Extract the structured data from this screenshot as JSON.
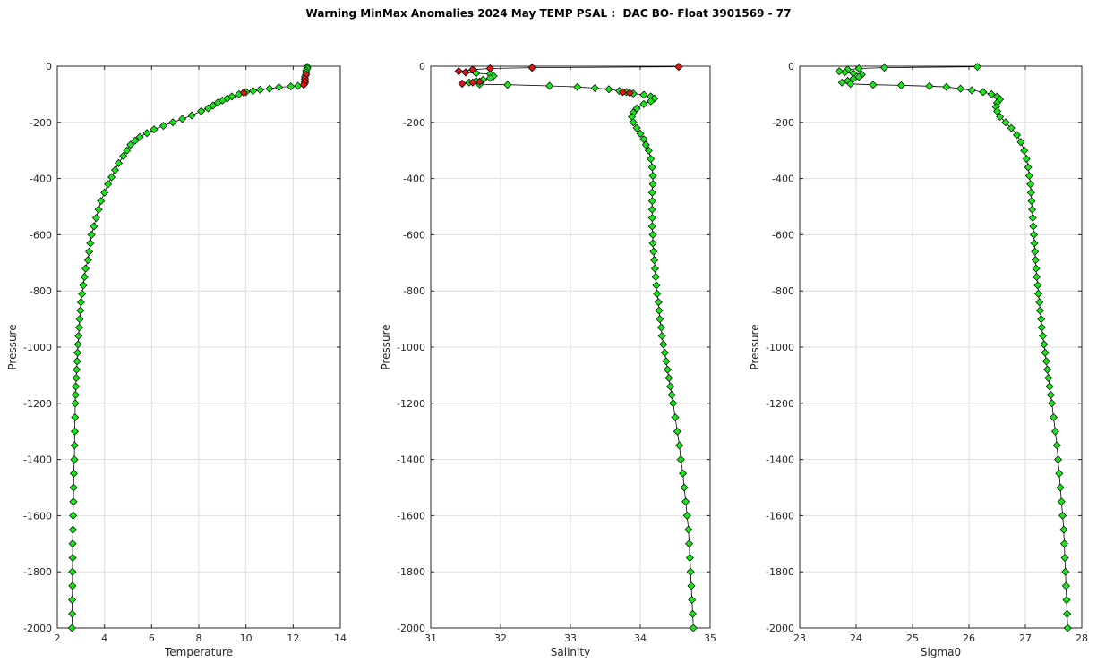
{
  "figure": {
    "title": "Warning MinMax Anomalies 2024 May TEMP PSAL :  DAC BO- Float 3901569 - 77"
  },
  "colors": {
    "good": "#19e619",
    "warning": "#e21515",
    "line": "#000000",
    "grid": "#dedede"
  },
  "chart_data": [
    {
      "type": "scatter",
      "xlabel": "Temperature",
      "ylabel": "Pressure",
      "xlim": [
        2,
        14
      ],
      "ylim": [
        -2000,
        0
      ],
      "xticks": [
        "2",
        "4",
        "6",
        "8",
        "10",
        "12",
        "14"
      ],
      "yticks": [
        "0",
        "-200",
        "-400",
        "-600",
        "-800",
        "-1000",
        "-1200",
        "-1400",
        "-1600",
        "-1800",
        "-2000"
      ],
      "grid": true,
      "series": [
        {
          "points": [
            [
              12.6,
              -2
            ],
            [
              12.6,
              -8
            ],
            [
              12.55,
              -15
            ],
            [
              12.55,
              -22
            ],
            [
              12.55,
              -30
            ],
            [
              12.5,
              -38
            ],
            [
              12.5,
              -45
            ],
            [
              12.5,
              -52
            ],
            [
              12.5,
              -60
            ],
            [
              12.45,
              -66
            ],
            [
              12.2,
              -70
            ],
            [
              11.9,
              -72
            ],
            [
              11.4,
              -75
            ],
            [
              11.0,
              -80
            ],
            [
              10.6,
              -84
            ],
            [
              10.3,
              -88
            ],
            [
              10.0,
              -92
            ],
            [
              9.7,
              -100
            ],
            [
              9.4,
              -108
            ],
            [
              9.2,
              -115
            ],
            [
              9.0,
              -122
            ],
            [
              8.8,
              -130
            ],
            [
              8.6,
              -140
            ],
            [
              8.4,
              -150
            ],
            [
              8.1,
              -160
            ],
            [
              7.7,
              -175
            ],
            [
              7.3,
              -188
            ],
            [
              6.9,
              -200
            ],
            [
              6.5,
              -212
            ],
            [
              6.1,
              -225
            ],
            [
              5.8,
              -238
            ],
            [
              5.5,
              -252
            ],
            [
              5.3,
              -265
            ],
            [
              5.1,
              -280
            ],
            [
              4.95,
              -300
            ],
            [
              4.8,
              -320
            ],
            [
              4.6,
              -345
            ],
            [
              4.45,
              -370
            ],
            [
              4.3,
              -395
            ],
            [
              4.15,
              -420
            ],
            [
              4.0,
              -450
            ],
            [
              3.85,
              -480
            ],
            [
              3.75,
              -510
            ],
            [
              3.65,
              -540
            ],
            [
              3.55,
              -570
            ],
            [
              3.45,
              -600
            ],
            [
              3.4,
              -630
            ],
            [
              3.35,
              -660
            ],
            [
              3.3,
              -690
            ],
            [
              3.2,
              -720
            ],
            [
              3.15,
              -750
            ],
            [
              3.1,
              -780
            ],
            [
              3.05,
              -810
            ],
            [
              3.0,
              -840
            ],
            [
              2.98,
              -870
            ],
            [
              2.95,
              -900
            ],
            [
              2.93,
              -930
            ],
            [
              2.9,
              -960
            ],
            [
              2.88,
              -990
            ],
            [
              2.86,
              -1020
            ],
            [
              2.84,
              -1050
            ],
            [
              2.82,
              -1080
            ],
            [
              2.8,
              -1110
            ],
            [
              2.78,
              -1140
            ],
            [
              2.77,
              -1170
            ],
            [
              2.76,
              -1200
            ],
            [
              2.75,
              -1250
            ],
            [
              2.74,
              -1300
            ],
            [
              2.73,
              -1350
            ],
            [
              2.72,
              -1400
            ],
            [
              2.7,
              -1450
            ],
            [
              2.69,
              -1500
            ],
            [
              2.68,
              -1550
            ],
            [
              2.67,
              -1600
            ],
            [
              2.66,
              -1650
            ],
            [
              2.65,
              -1700
            ],
            [
              2.65,
              -1750
            ],
            [
              2.64,
              -1800
            ],
            [
              2.64,
              -1850
            ],
            [
              2.63,
              -1900
            ],
            [
              2.63,
              -1950
            ],
            [
              2.62,
              -2000
            ]
          ],
          "warning_points": [
            [
              12.55,
              -30
            ],
            [
              12.5,
              -45
            ],
            [
              12.5,
              -55
            ],
            [
              12.45,
              -66
            ],
            [
              9.9,
              -94
            ]
          ]
        }
      ]
    },
    {
      "type": "scatter",
      "xlabel": "Salinity",
      "ylabel": "Pressure",
      "xlim": [
        31,
        35
      ],
      "ylim": [
        -2000,
        0
      ],
      "xticks": [
        "31",
        "32",
        "33",
        "34",
        "35"
      ],
      "yticks": [
        "0",
        "-200",
        "-400",
        "-600",
        "-800",
        "-1000",
        "-1200",
        "-1400",
        "-1600",
        "-1800",
        "-2000"
      ],
      "grid": true,
      "series": [
        {
          "points": [
            [
              34.55,
              -2
            ],
            [
              32.45,
              -5
            ],
            [
              31.85,
              -8
            ],
            [
              31.6,
              -12
            ],
            [
              31.4,
              -18
            ],
            [
              31.5,
              -22
            ],
            [
              31.65,
              -25
            ],
            [
              31.85,
              -28
            ],
            [
              31.9,
              -35
            ],
            [
              31.85,
              -42
            ],
            [
              31.75,
              -48
            ],
            [
              31.65,
              -53
            ],
            [
              31.55,
              -58
            ],
            [
              31.45,
              -62
            ],
            [
              31.7,
              -65
            ],
            [
              32.1,
              -66
            ],
            [
              32.7,
              -70
            ],
            [
              33.1,
              -74
            ],
            [
              33.35,
              -78
            ],
            [
              33.55,
              -82
            ],
            [
              33.7,
              -88
            ],
            [
              33.8,
              -92
            ],
            [
              33.9,
              -97
            ],
            [
              34.05,
              -102
            ],
            [
              34.15,
              -108
            ],
            [
              34.2,
              -115
            ],
            [
              34.15,
              -125
            ],
            [
              34.05,
              -135
            ],
            [
              33.95,
              -150
            ],
            [
              33.9,
              -165
            ],
            [
              33.88,
              -180
            ],
            [
              33.9,
              -200
            ],
            [
              33.95,
              -220
            ],
            [
              34.0,
              -240
            ],
            [
              34.05,
              -260
            ],
            [
              34.08,
              -280
            ],
            [
              34.12,
              -300
            ],
            [
              34.15,
              -330
            ],
            [
              34.17,
              -360
            ],
            [
              34.18,
              -390
            ],
            [
              34.18,
              -420
            ],
            [
              34.17,
              -450
            ],
            [
              34.17,
              -480
            ],
            [
              34.17,
              -510
            ],
            [
              34.17,
              -540
            ],
            [
              34.17,
              -570
            ],
            [
              34.18,
              -600
            ],
            [
              34.18,
              -630
            ],
            [
              34.19,
              -660
            ],
            [
              34.2,
              -690
            ],
            [
              34.21,
              -720
            ],
            [
              34.22,
              -750
            ],
            [
              34.23,
              -780
            ],
            [
              34.24,
              -810
            ],
            [
              34.26,
              -840
            ],
            [
              34.27,
              -870
            ],
            [
              34.28,
              -900
            ],
            [
              34.3,
              -930
            ],
            [
              34.31,
              -960
            ],
            [
              34.33,
              -990
            ],
            [
              34.35,
              -1020
            ],
            [
              34.37,
              -1050
            ],
            [
              34.39,
              -1080
            ],
            [
              34.41,
              -1110
            ],
            [
              34.43,
              -1140
            ],
            [
              34.45,
              -1170
            ],
            [
              34.47,
              -1200
            ],
            [
              34.5,
              -1250
            ],
            [
              34.53,
              -1300
            ],
            [
              34.56,
              -1350
            ],
            [
              34.58,
              -1400
            ],
            [
              34.61,
              -1450
            ],
            [
              34.63,
              -1500
            ],
            [
              34.65,
              -1550
            ],
            [
              34.67,
              -1600
            ],
            [
              34.69,
              -1650
            ],
            [
              34.7,
              -1700
            ],
            [
              34.71,
              -1750
            ],
            [
              34.72,
              -1800
            ],
            [
              34.73,
              -1850
            ],
            [
              34.74,
              -1900
            ],
            [
              34.75,
              -1950
            ],
            [
              34.76,
              -2000
            ]
          ],
          "warning_points": [
            [
              34.55,
              -2
            ],
            [
              32.45,
              -5
            ],
            [
              31.85,
              -8
            ],
            [
              31.6,
              -12
            ],
            [
              31.4,
              -18
            ],
            [
              31.5,
              -22
            ],
            [
              31.45,
              -62
            ],
            [
              31.6,
              -58
            ],
            [
              31.7,
              -55
            ],
            [
              33.75,
              -92
            ],
            [
              33.85,
              -95
            ]
          ]
        }
      ]
    },
    {
      "type": "scatter",
      "xlabel": "Sigma0",
      "ylabel": "Pressure",
      "xlim": [
        23,
        28
      ],
      "ylim": [
        -2000,
        0
      ],
      "xticks": [
        "23",
        "24",
        "25",
        "26",
        "27",
        "28"
      ],
      "yticks": [
        "0",
        "-200",
        "-400",
        "-600",
        "-800",
        "-1000",
        "-1200",
        "-1400",
        "-1600",
        "-1800",
        "-2000"
      ],
      "grid": true,
      "series": [
        {
          "points": [
            [
              26.15,
              -2
            ],
            [
              24.5,
              -5
            ],
            [
              24.05,
              -8
            ],
            [
              23.85,
              -12
            ],
            [
              23.7,
              -18
            ],
            [
              23.8,
              -22
            ],
            [
              23.95,
              -25
            ],
            [
              24.1,
              -30
            ],
            [
              24.05,
              -38
            ],
            [
              23.95,
              -45
            ],
            [
              23.85,
              -52
            ],
            [
              23.75,
              -58
            ],
            [
              23.9,
              -63
            ],
            [
              24.3,
              -66
            ],
            [
              24.8,
              -68
            ],
            [
              25.3,
              -71
            ],
            [
              25.6,
              -74
            ],
            [
              25.85,
              -80
            ],
            [
              26.05,
              -86
            ],
            [
              26.25,
              -92
            ],
            [
              26.4,
              -100
            ],
            [
              26.5,
              -108
            ],
            [
              26.55,
              -118
            ],
            [
              26.5,
              -130
            ],
            [
              26.48,
              -145
            ],
            [
              26.5,
              -160
            ],
            [
              26.55,
              -180
            ],
            [
              26.65,
              -200
            ],
            [
              26.75,
              -220
            ],
            [
              26.85,
              -245
            ],
            [
              26.92,
              -270
            ],
            [
              26.98,
              -300
            ],
            [
              27.02,
              -330
            ],
            [
              27.05,
              -360
            ],
            [
              27.07,
              -390
            ],
            [
              27.09,
              -420
            ],
            [
              27.1,
              -450
            ],
            [
              27.11,
              -480
            ],
            [
              27.12,
              -510
            ],
            [
              27.13,
              -540
            ],
            [
              27.14,
              -570
            ],
            [
              27.15,
              -600
            ],
            [
              27.16,
              -630
            ],
            [
              27.17,
              -660
            ],
            [
              27.18,
              -690
            ],
            [
              27.19,
              -720
            ],
            [
              27.2,
              -750
            ],
            [
              27.22,
              -780
            ],
            [
              27.23,
              -810
            ],
            [
              27.25,
              -840
            ],
            [
              27.26,
              -870
            ],
            [
              27.28,
              -900
            ],
            [
              27.29,
              -930
            ],
            [
              27.31,
              -960
            ],
            [
              27.33,
              -990
            ],
            [
              27.35,
              -1020
            ],
            [
              27.37,
              -1050
            ],
            [
              27.39,
              -1080
            ],
            [
              27.41,
              -1110
            ],
            [
              27.43,
              -1140
            ],
            [
              27.45,
              -1170
            ],
            [
              27.47,
              -1200
            ],
            [
              27.5,
              -1250
            ],
            [
              27.53,
              -1300
            ],
            [
              27.56,
              -1350
            ],
            [
              27.58,
              -1400
            ],
            [
              27.6,
              -1450
            ],
            [
              27.62,
              -1500
            ],
            [
              27.64,
              -1550
            ],
            [
              27.66,
              -1600
            ],
            [
              27.68,
              -1650
            ],
            [
              27.69,
              -1700
            ],
            [
              27.7,
              -1750
            ],
            [
              27.71,
              -1800
            ],
            [
              27.72,
              -1850
            ],
            [
              27.73,
              -1900
            ],
            [
              27.74,
              -1950
            ],
            [
              27.75,
              -2000
            ]
          ],
          "warning_points": []
        }
      ]
    }
  ]
}
